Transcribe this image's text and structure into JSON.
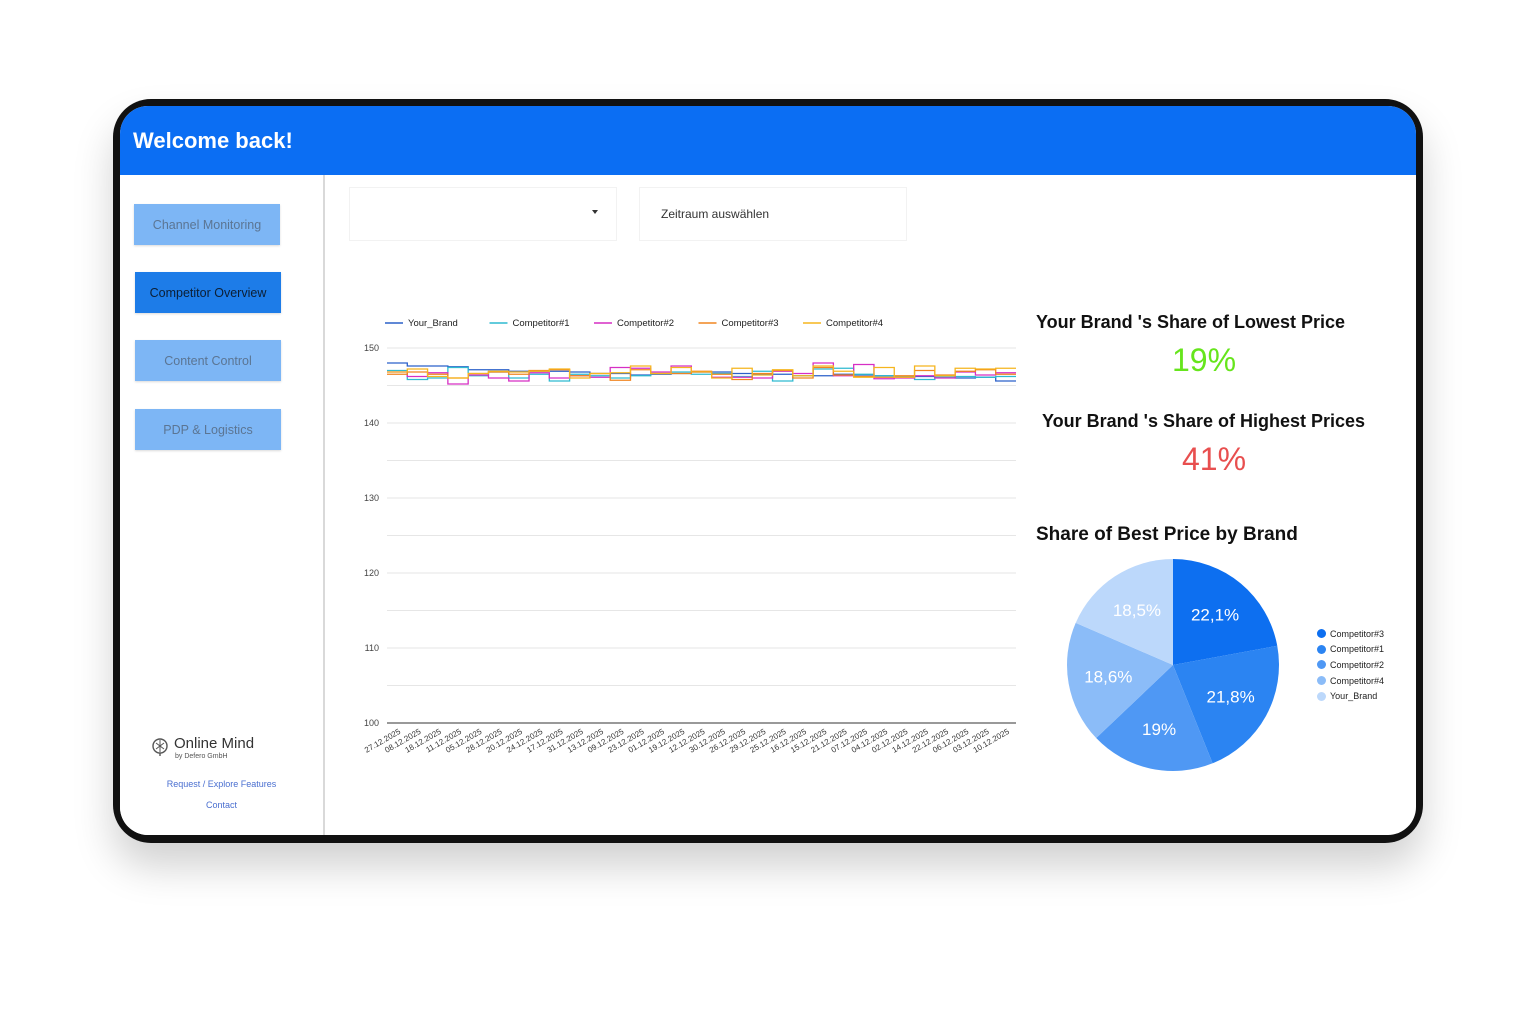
{
  "header": {
    "title": "Welcome back!"
  },
  "sidebar": {
    "items": [
      {
        "label": "Channel Monitoring"
      },
      {
        "label": "Competitor Overview"
      },
      {
        "label": "Content Control"
      },
      {
        "label": "PDP & Logistics"
      }
    ],
    "logo": {
      "name": "Online Mind",
      "sub": "by Defero GmbH"
    },
    "links": [
      {
        "label": "Request / Explore Features"
      },
      {
        "label": "Contact"
      }
    ]
  },
  "filters": {
    "dropdown_value": "",
    "date_placeholder": "Zeitraum auswählen"
  },
  "kpis": {
    "lowest": {
      "title": "Your Brand 's Share of Lowest Price",
      "value": "19%",
      "color": "#66e51c"
    },
    "highest": {
      "title": "Your Brand 's Share of Highest Prices",
      "value": "41%",
      "color": "#e84f4f"
    }
  },
  "chart_data": [
    {
      "type": "line",
      "ylim": [
        100,
        150
      ],
      "yticks": [
        100,
        110,
        120,
        130,
        140,
        150
      ],
      "grid": true,
      "legend_position": "top",
      "x": [
        "27.12.2025",
        "08.12.2025",
        "18.12.2025",
        "11.12.2025",
        "05.12.2025",
        "28.12.2025",
        "20.12.2025",
        "24.12.2025",
        "17.12.2025",
        "31.12.2025",
        "13.12.2025",
        "09.12.2025",
        "23.12.2025",
        "01.12.2025",
        "19.12.2025",
        "12.12.2025",
        "30.12.2025",
        "26.12.2025",
        "29.12.2025",
        "25.12.2025",
        "16.12.2025",
        "15.12.2025",
        "21.12.2025",
        "07.12.2025",
        "04.12.2025",
        "02.12.2025",
        "14.12.2025",
        "22.12.2025",
        "06.12.2025",
        "03.12.2025",
        "10.12.2025"
      ],
      "series": [
        {
          "name": "Your_Brand",
          "color": "#2b60c9",
          "values": [
            148,
            147.6,
            147.6,
            147.5,
            147.1,
            147.1,
            146.9,
            146.9,
            146.9,
            146.8,
            146.6,
            146.6,
            146.4,
            146.5,
            146.6,
            146.8,
            146.8,
            146.6,
            146.5,
            146.5,
            146.3,
            146.3,
            146.5,
            146.4,
            146.3,
            146.1,
            146.2,
            146.1,
            146.0,
            146.1,
            145.6
          ]
        },
        {
          "name": "Competitor#1",
          "color": "#2fbad0",
          "values": [
            147.0,
            145.8,
            146.0,
            147.4,
            146.3,
            146.8,
            146.0,
            146.5,
            145.6,
            146.5,
            146.3,
            146.0,
            146.3,
            146.6,
            146.8,
            146.5,
            146.6,
            146.2,
            146.9,
            145.6,
            146.3,
            147.2,
            147.3,
            146.5,
            146.3,
            146.2,
            145.8,
            146.1,
            146.2,
            146.1,
            146.2
          ]
        },
        {
          "name": "Competitor#2",
          "color": "#d62fc4",
          "values": [
            146.8,
            146.2,
            146.7,
            145.2,
            146.4,
            146.0,
            145.6,
            146.7,
            146.0,
            146.3,
            146.1,
            147.4,
            147.3,
            146.8,
            147.6,
            146.8,
            146.1,
            146.1,
            146.0,
            146.9,
            146.6,
            148.0,
            146.3,
            147.8,
            145.9,
            146.0,
            146.3,
            146.0,
            146.8,
            146.4,
            146.7
          ]
        },
        {
          "name": "Competitor#3",
          "color": "#f08520",
          "values": [
            146.5,
            146.8,
            146.5,
            146.0,
            146.6,
            146.8,
            146.5,
            147.0,
            147.1,
            146.3,
            146.6,
            145.7,
            147.1,
            146.6,
            146.6,
            146.9,
            146.5,
            145.8,
            146.6,
            147.0,
            146.0,
            147.4,
            146.4,
            146.2,
            146.1,
            146.3,
            147.0,
            146.4,
            146.9,
            147.1,
            146.5
          ]
        },
        {
          "name": "Competitor#4",
          "color": "#f5b51e",
          "values": [
            146.8,
            147.2,
            146.2,
            146.0,
            146.6,
            146.9,
            146.8,
            146.9,
            147.2,
            146.0,
            146.6,
            146.7,
            147.6,
            146.6,
            147.4,
            146.8,
            146.0,
            147.3,
            146.4,
            147.1,
            146.3,
            147.6,
            146.9,
            146.1,
            147.4,
            146.1,
            147.6,
            146.3,
            147.3,
            147.2,
            147.3
          ]
        }
      ]
    },
    {
      "type": "pie",
      "title": "Share of Best Price by Brand",
      "legend_position": "right",
      "categories": [
        "Competitor#3",
        "Competitor#1",
        "Competitor#2",
        "Competitor#4",
        "Your_Brand"
      ],
      "values": [
        22.1,
        21.8,
        19,
        18.6,
        18.5
      ],
      "labels": [
        "22,1%",
        "21,8%",
        "19%",
        "18,6%",
        "18,5%"
      ],
      "colors": [
        "#0d6ff0",
        "#2b84f2",
        "#4f98f4",
        "#8bbcf8",
        "#bcd8fb"
      ]
    }
  ]
}
